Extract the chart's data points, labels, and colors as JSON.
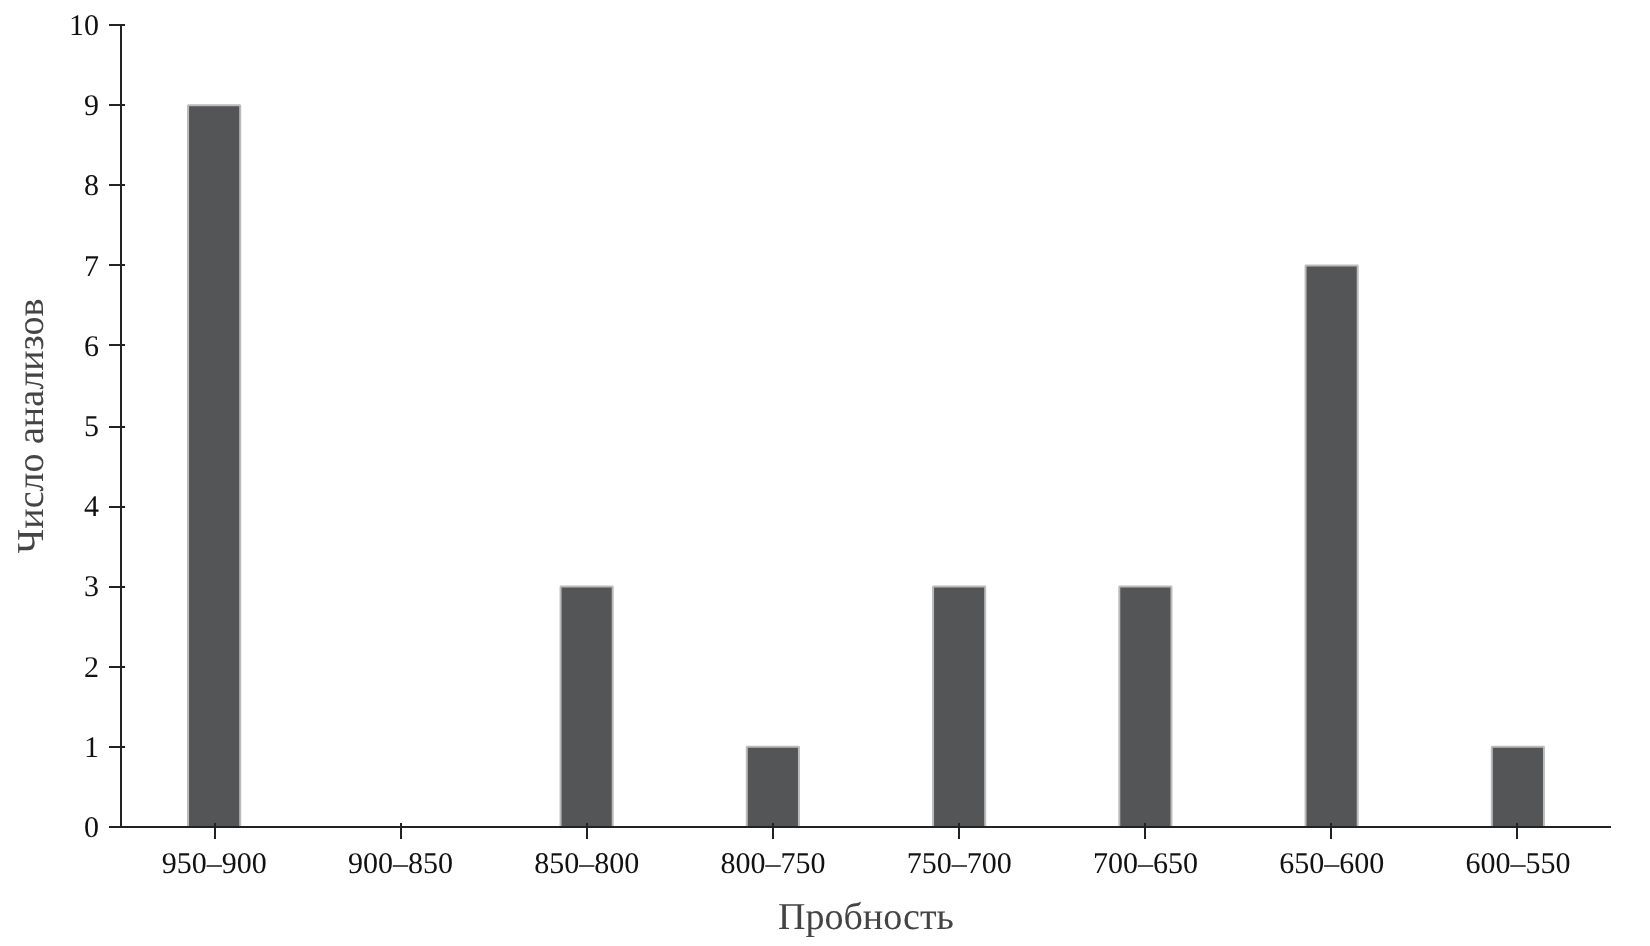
{
  "chart_data": {
    "type": "bar",
    "xlabel": "Пробность",
    "ylabel": "Число анализов",
    "categories": [
      "950–900",
      "900–850",
      "850–800",
      "800–750",
      "750–700",
      "700–650",
      "650–600",
      "600–550"
    ],
    "values": [
      9,
      0,
      3,
      1,
      3,
      3,
      7,
      1
    ],
    "color": "#545557",
    "ylim": [
      0,
      10
    ],
    "yticks": [
      0,
      1,
      2,
      3,
      4,
      5,
      6,
      7,
      8,
      9,
      10
    ],
    "grid": false
  }
}
